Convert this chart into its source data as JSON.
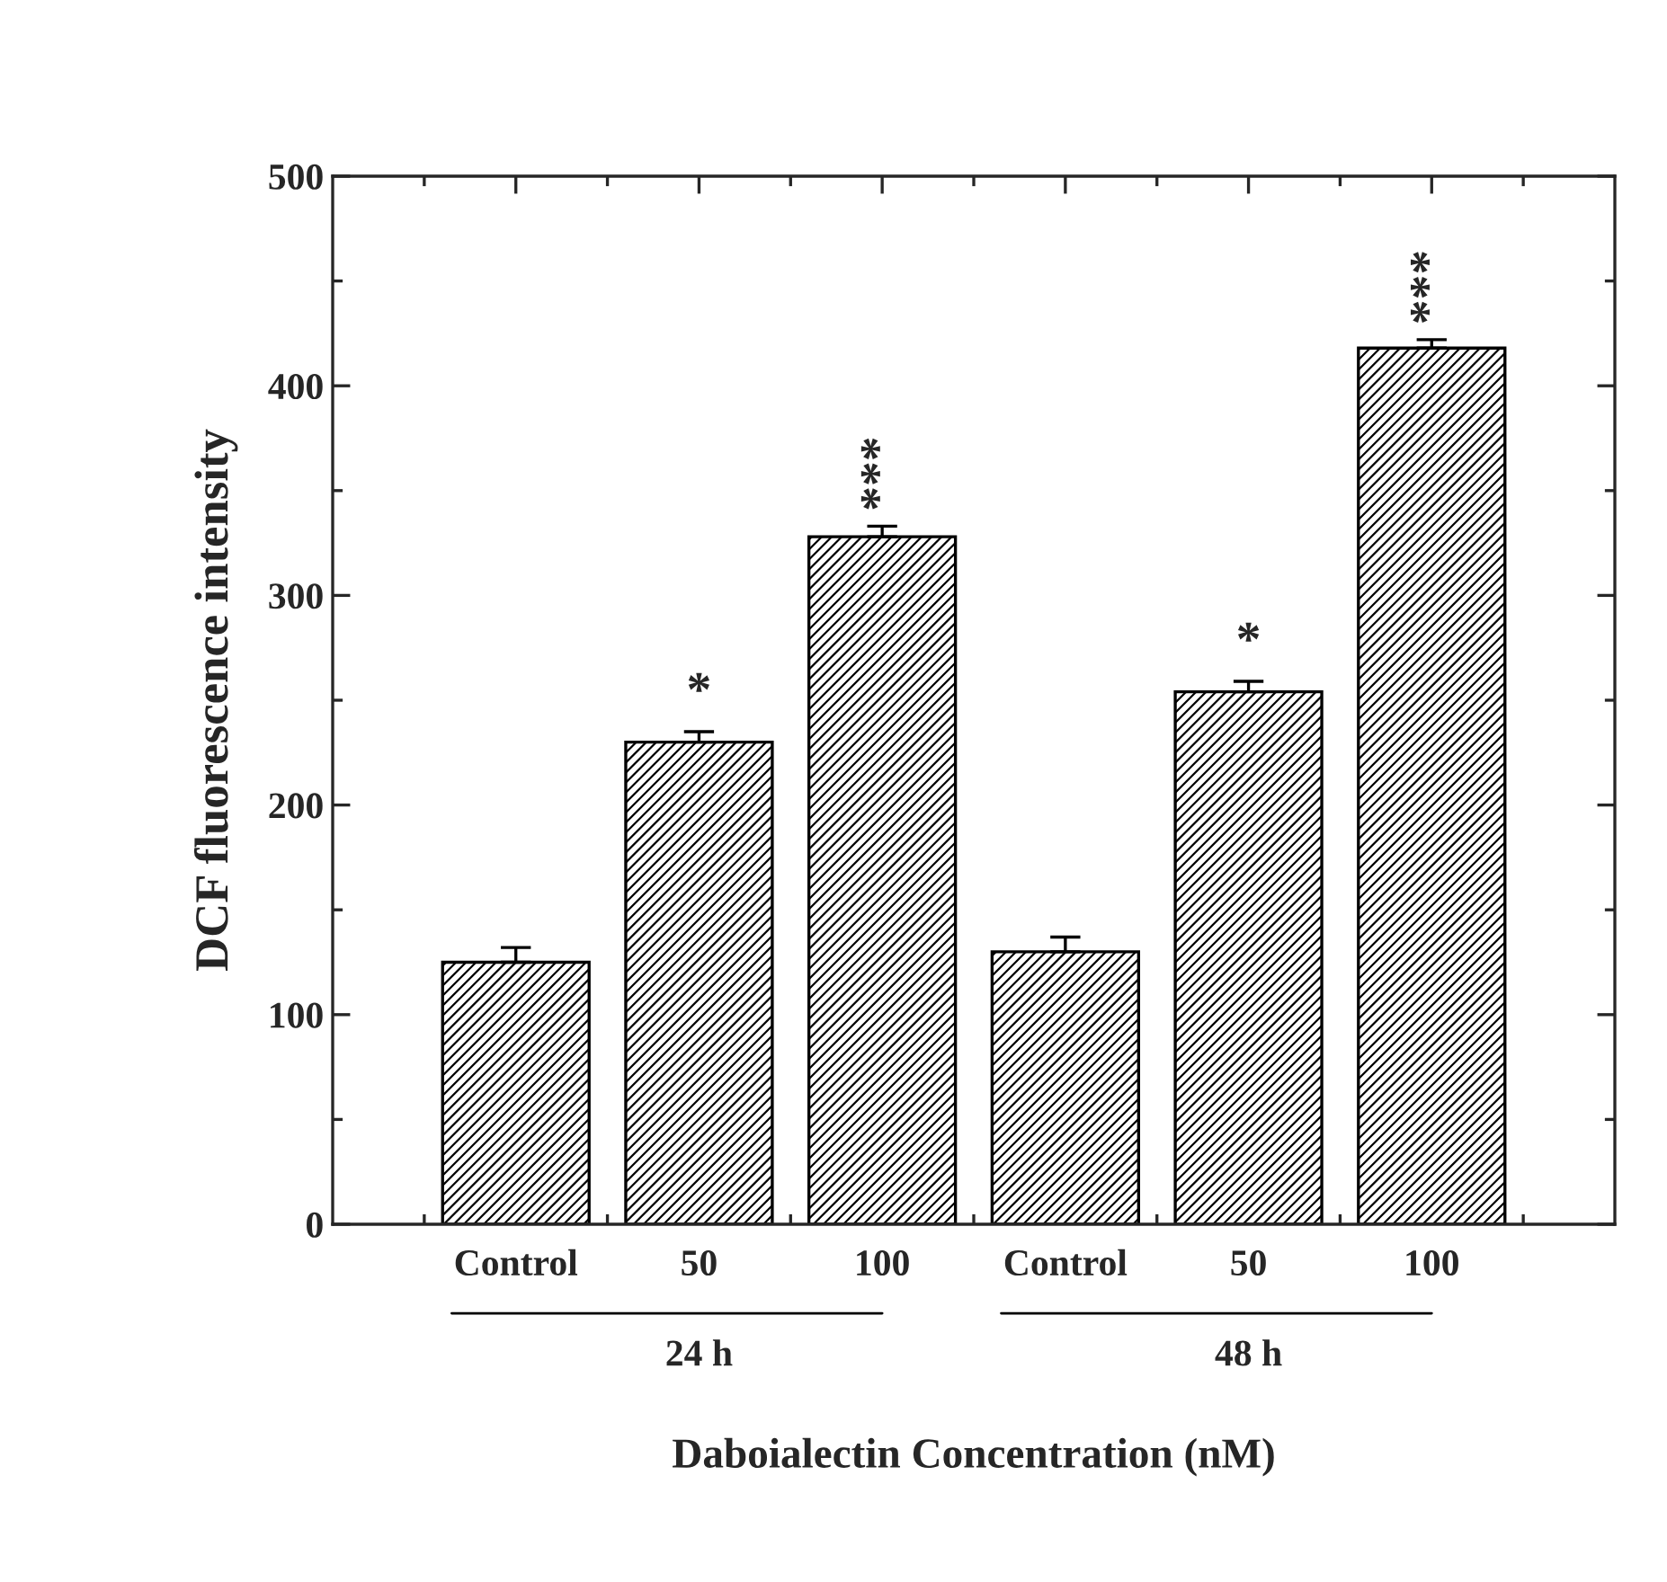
{
  "chart_data": {
    "type": "bar",
    "xlabel": "Daboialectin Concentration (nM)",
    "ylabel": "DCF fluorescence intensity",
    "categories": [
      "Control",
      "50",
      "100",
      "Control",
      "50",
      "100"
    ],
    "values": [
      125,
      230,
      328,
      130,
      254,
      418
    ],
    "errors": [
      7,
      5,
      5,
      7,
      5,
      4
    ],
    "value_labels": [
      null,
      "*",
      "***",
      null,
      "*",
      "***"
    ],
    "color": "#000000",
    "ylim": [
      0,
      500
    ],
    "yticks": [
      0,
      100,
      200,
      300,
      400,
      500
    ],
    "annotations": [
      "24 h",
      "48 h"
    ],
    "grid": false,
    "legend": false
  }
}
